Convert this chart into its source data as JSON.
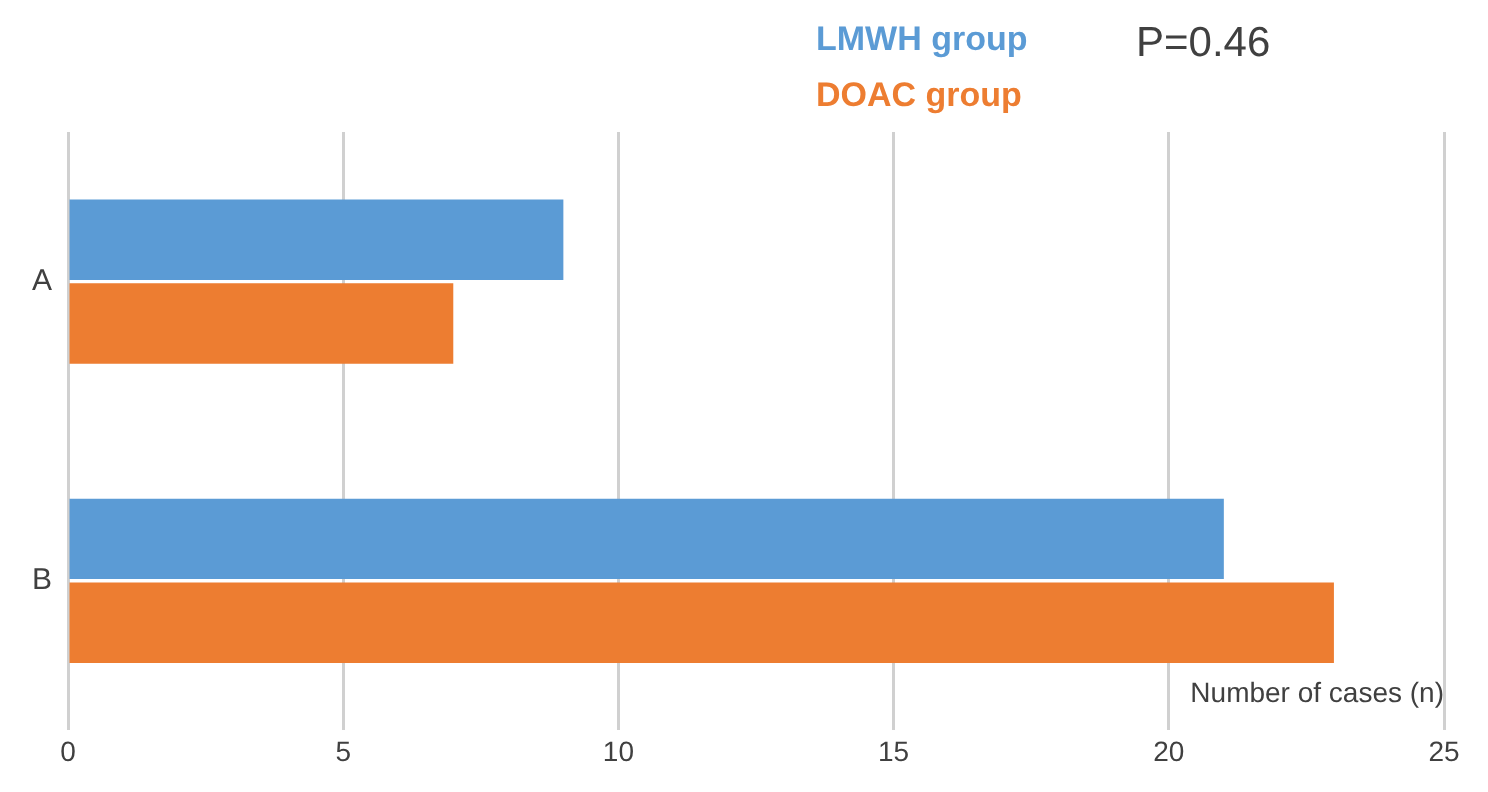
{
  "chart_data": {
    "type": "bar",
    "orientation": "horizontal",
    "categories": [
      "A",
      "B"
    ],
    "series": [
      {
        "name": "LMWH group",
        "color": "#5b9bd5",
        "values": [
          9,
          21
        ]
      },
      {
        "name": "DOAC group",
        "color": "#ed7d31",
        "values": [
          7,
          23
        ]
      }
    ],
    "xlabel": "Number of cases (n)",
    "xlim": [
      0,
      25
    ],
    "xticks": [
      0,
      5,
      10,
      15,
      20,
      25
    ],
    "grid": "x",
    "legend": "top",
    "annotations": [
      "P=0.46"
    ]
  }
}
